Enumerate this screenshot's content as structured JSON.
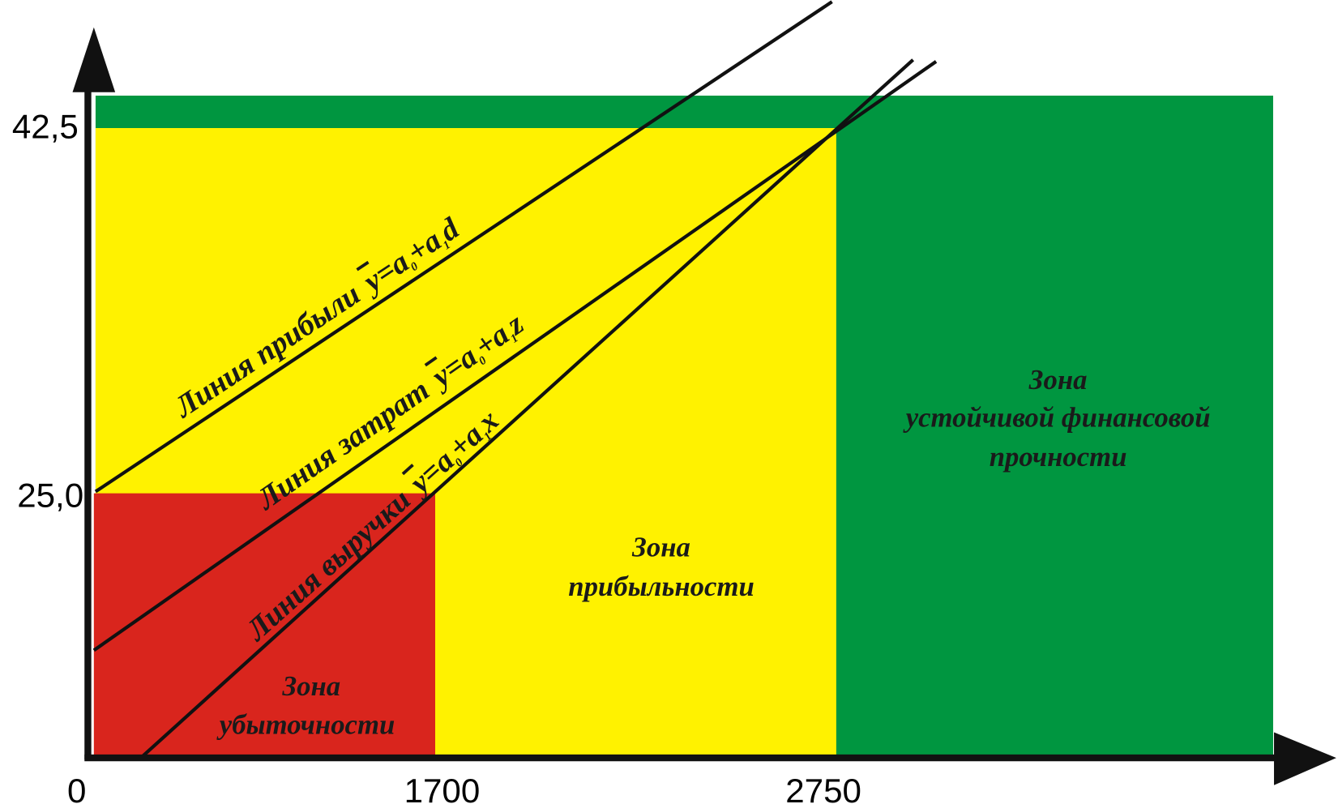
{
  "axes": {
    "x_ticks": [
      "0",
      "1700",
      "2750"
    ],
    "y_ticks": [
      "42,5",
      "25,0"
    ]
  },
  "lines": [
    {
      "name": "Линия прибыли",
      "y": "y",
      "eq": "=a",
      "sub0": "0",
      "plus": "+a",
      "sub1": "1",
      "var": "d"
    },
    {
      "name": "Линия затрат",
      "y": "y",
      "eq": "=a",
      "sub0": "0",
      "plus": "+a",
      "sub1": "1",
      "var": "z"
    },
    {
      "name": "Линия выручки",
      "y": "y",
      "eq": "=a",
      "sub0": "0",
      "plus": "+a",
      "sub1": "1",
      "var": "x"
    }
  ],
  "zones": [
    {
      "lines": [
        "Зона",
        "убыточности"
      ]
    },
    {
      "lines": [
        "Зона",
        "прибыльности"
      ]
    },
    {
      "lines": [
        "Зона",
        "устойчивой финансовой",
        "прочности"
      ]
    }
  ]
}
